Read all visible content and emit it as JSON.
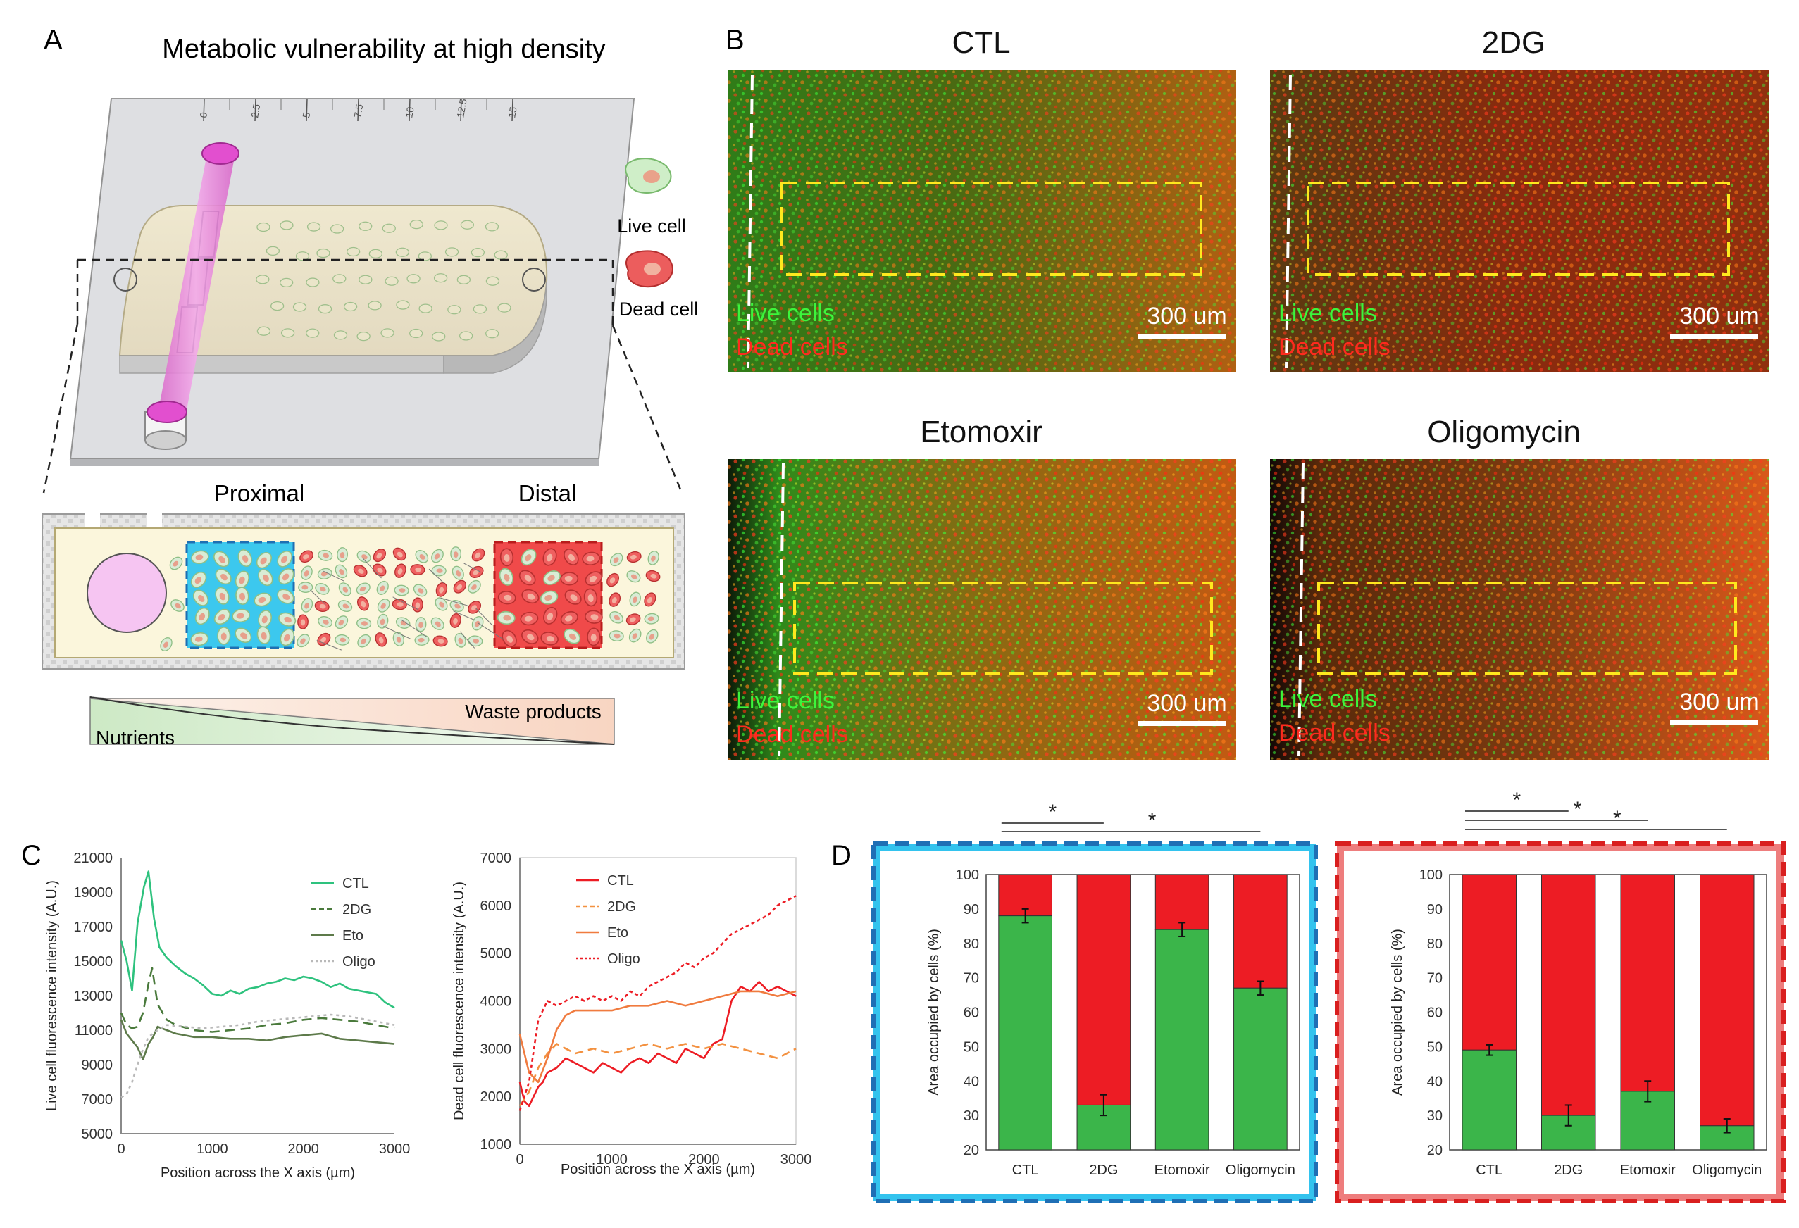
{
  "panels": {
    "A": "A",
    "B": "B",
    "C": "C",
    "D": "D"
  },
  "panelA": {
    "title": "Metabolic vulnerability at high density",
    "ruler": [
      "0",
      "2.5",
      "5",
      "7.5",
      "10",
      "12.5",
      "15"
    ],
    "legend_live": "Live cell",
    "legend_dead": "Dead cell",
    "proximal": "Proximal",
    "distal": "Distal",
    "waste": "Waste products",
    "nutrients": "Nutrients"
  },
  "panelB": {
    "images": [
      {
        "title": "CTL",
        "live": "Live cells",
        "dead": "Dead cells",
        "scale": "300 um",
        "tone": "#8a5a12"
      },
      {
        "title": "2DG",
        "live": "Live cells",
        "dead": "Dead cells",
        "scale": "300 um",
        "tone": "#8a3412"
      },
      {
        "title": "Etomoxir",
        "live": "Live cells",
        "dead": "Dead cells",
        "scale": "300 um",
        "tone": "#a05f0c"
      },
      {
        "title": "Oligomycin",
        "live": "Live cells",
        "dead": "Dead cells",
        "scale": "300 um",
        "tone": "#a33c10"
      }
    ]
  },
  "colors": {
    "green": "#3bb54a",
    "red": "#ed1c24",
    "cyan": "#33c3ee",
    "pink": "#ee7d7d",
    "teal": "#2ec27e"
  },
  "chart_data": [
    {
      "type": "line",
      "ylabel": "Live cell fluorescence intensity (A.U.)",
      "xlabel": "Position across the X axis (µm)",
      "xlim": [
        0,
        3000
      ],
      "ylim": [
        5000,
        21000
      ],
      "xticks": [
        "0",
        "1000",
        "2000",
        "3000"
      ],
      "yticks": [
        "5000",
        "7000",
        "9000",
        "11000",
        "13000",
        "15000",
        "17000",
        "19000",
        "21000"
      ],
      "series": [
        {
          "name": "CTL",
          "color": "#2ec27e",
          "dash": "",
          "x": [
            0,
            60,
            120,
            180,
            250,
            300,
            360,
            420,
            500,
            600,
            700,
            800,
            900,
            1000,
            1100,
            1200,
            1300,
            1400,
            1500,
            1600,
            1700,
            1800,
            1900,
            2000,
            2100,
            2200,
            2300,
            2400,
            2500,
            2600,
            2700,
            2800,
            2900,
            3000
          ],
          "y": [
            16200,
            15000,
            13300,
            17200,
            19300,
            20200,
            17500,
            15800,
            15200,
            14700,
            14300,
            14000,
            13600,
            13100,
            13000,
            13300,
            13100,
            13400,
            13500,
            13700,
            13800,
            14000,
            13900,
            14100,
            14000,
            13800,
            13500,
            13700,
            13400,
            13300,
            13200,
            13100,
            12600,
            12300
          ]
        },
        {
          "name": "2DG",
          "color": "#4a7a3c",
          "dash": "14,8",
          "x": [
            0,
            60,
            120,
            180,
            240,
            300,
            340,
            400,
            500,
            600,
            800,
            1000,
            1200,
            1400,
            1600,
            1800,
            2000,
            2200,
            2400,
            2600,
            2800,
            3000
          ],
          "y": [
            12000,
            11300,
            11100,
            11200,
            12000,
            13700,
            14600,
            12500,
            11600,
            11300,
            11000,
            10900,
            11000,
            11100,
            11300,
            11400,
            11600,
            11700,
            11600,
            11500,
            11300,
            11100
          ]
        },
        {
          "name": "Eto",
          "color": "#5d7a4a",
          "dash": "",
          "x": [
            0,
            60,
            120,
            180,
            240,
            300,
            350,
            400,
            500,
            600,
            800,
            1000,
            1200,
            1400,
            1600,
            1800,
            2000,
            2200,
            2400,
            2600,
            2800,
            3000
          ],
          "y": [
            11600,
            10800,
            10400,
            10000,
            9300,
            10200,
            10600,
            11200,
            11000,
            10800,
            10600,
            10600,
            10500,
            10500,
            10400,
            10600,
            10700,
            10800,
            10500,
            10400,
            10300,
            10200
          ]
        },
        {
          "name": "Oligo",
          "color": "#b9b9b9",
          "dash": "4,5",
          "x": [
            0,
            60,
            120,
            180,
            240,
            300,
            400,
            500,
            700,
            900,
            1100,
            1300,
            1500,
            1700,
            1900,
            2100,
            2300,
            2500,
            2700,
            2900,
            3000
          ],
          "y": [
            7100,
            7300,
            8000,
            9000,
            9900,
            10600,
            11000,
            11300,
            11200,
            11100,
            11200,
            11300,
            11500,
            11600,
            11700,
            11800,
            11900,
            11800,
            11600,
            11400,
            11300
          ]
        }
      ]
    },
    {
      "type": "line",
      "ylabel": "Dead cell fluorescence intensity (A.U.)",
      "xlabel": "Position across the X axis (µm)",
      "xlim": [
        0,
        3000
      ],
      "ylim": [
        1000,
        7000
      ],
      "xticks": [
        "0",
        "1000",
        "2000",
        "3000"
      ],
      "yticks": [
        "1000",
        "2000",
        "3000",
        "4000",
        "5000",
        "6000",
        "7000"
      ],
      "series": [
        {
          "name": "CTL",
          "color": "#ed1c24",
          "dash": "",
          "x": [
            0,
            50,
            100,
            150,
            200,
            250,
            300,
            400,
            500,
            600,
            700,
            800,
            900,
            1000,
            1100,
            1200,
            1300,
            1400,
            1500,
            1600,
            1700,
            1800,
            1900,
            2000,
            2100,
            2200,
            2300,
            2400,
            2500,
            2600,
            2700,
            2800,
            2900,
            3000
          ],
          "y": [
            2300,
            1900,
            1800,
            2000,
            2200,
            2300,
            2500,
            2600,
            2800,
            2700,
            2600,
            2500,
            2700,
            2600,
            2500,
            2700,
            2800,
            2700,
            2900,
            2800,
            2700,
            3000,
            2900,
            2800,
            3100,
            3200,
            4000,
            4300,
            4200,
            4400,
            4200,
            4300,
            4200,
            4100
          ]
        },
        {
          "name": "2DG",
          "color": "#f39140",
          "dash": "12,7",
          "x": [
            0,
            100,
            200,
            300,
            400,
            500,
            600,
            800,
            1000,
            1200,
            1400,
            1600,
            1800,
            2000,
            2200,
            2400,
            2600,
            2800,
            3000
          ],
          "y": [
            1800,
            2100,
            2600,
            2900,
            3100,
            3000,
            2900,
            3000,
            2900,
            3000,
            3100,
            3000,
            3100,
            3000,
            3100,
            3000,
            2900,
            2800,
            3000
          ]
        },
        {
          "name": "Eto",
          "color": "#f07b3f",
          "dash": "",
          "x": [
            0,
            100,
            200,
            300,
            400,
            500,
            600,
            800,
            1000,
            1200,
            1400,
            1600,
            1800,
            2000,
            2200,
            2400,
            2600,
            2800,
            3000
          ],
          "y": [
            3300,
            2500,
            2300,
            2800,
            3400,
            3700,
            3800,
            3800,
            3800,
            3900,
            3900,
            4000,
            3900,
            4000,
            4100,
            4200,
            4200,
            4100,
            4200
          ]
        },
        {
          "name": "Oligo",
          "color": "#ed1c24",
          "dash": "5,4",
          "x": [
            0,
            100,
            200,
            300,
            400,
            500,
            600,
            700,
            800,
            900,
            1000,
            1100,
            1200,
            1300,
            1400,
            1500,
            1600,
            1700,
            1800,
            1900,
            2000,
            2100,
            2200,
            2300,
            2400,
            2500,
            2600,
            2700,
            2800,
            2900,
            3000
          ],
          "y": [
            1700,
            2300,
            3600,
            4000,
            3900,
            4000,
            4100,
            4000,
            4100,
            4000,
            4100,
            4000,
            4200,
            4100,
            4300,
            4400,
            4500,
            4600,
            4800,
            4700,
            4900,
            5000,
            5200,
            5400,
            5500,
            5600,
            5700,
            5800,
            6000,
            6100,
            6200
          ]
        }
      ]
    },
    {
      "type": "bar",
      "stacked": true,
      "ylabel": "Area occupied by cells (%)",
      "categories": [
        "CTL",
        "2DG",
        "Etomoxir",
        "Oligomycin"
      ],
      "ylim": [
        20,
        100
      ],
      "yticks": [
        "20",
        "30",
        "40",
        "50",
        "60",
        "70",
        "80",
        "90",
        "100"
      ],
      "live": [
        88,
        33,
        84,
        67
      ],
      "error": [
        2,
        3,
        2,
        2
      ],
      "significance": [
        [
          "CTL",
          "2DG",
          "*"
        ],
        [
          "CTL",
          "Oligomycin",
          "*"
        ]
      ]
    },
    {
      "type": "bar",
      "stacked": true,
      "ylabel": "Area occupied by cells (%)",
      "categories": [
        "CTL",
        "2DG",
        "Etomoxir",
        "Oligomycin"
      ],
      "ylim": [
        20,
        100
      ],
      "yticks": [
        "20",
        "30",
        "40",
        "50",
        "60",
        "70",
        "80",
        "90",
        "100"
      ],
      "live": [
        49,
        30,
        37,
        27
      ],
      "error": [
        1.5,
        3,
        3,
        2
      ],
      "significance": [
        [
          "CTL",
          "2DG",
          "*"
        ],
        [
          "CTL",
          "Etomoxir",
          "*"
        ],
        [
          "CTL",
          "Oligomycin",
          "*"
        ]
      ]
    }
  ]
}
